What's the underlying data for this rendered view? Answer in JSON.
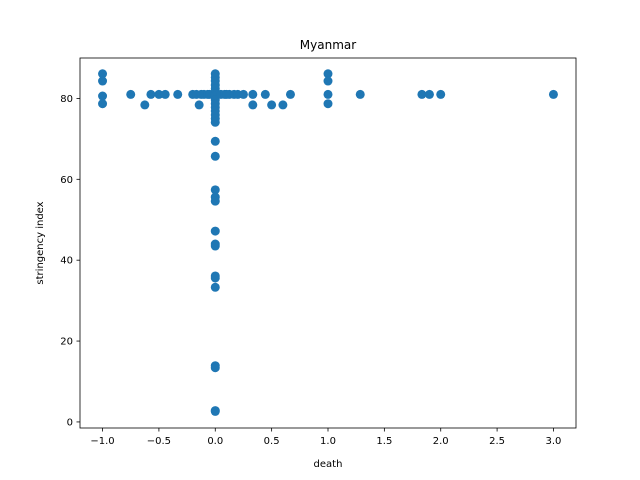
{
  "chart_data": {
    "type": "scatter",
    "title": "Myanmar",
    "xlabel": "death",
    "ylabel": "stringency index",
    "xlim": [
      -1.2,
      3.2
    ],
    "ylim": [
      -1.5,
      90
    ],
    "xticks": [
      -1.0,
      -0.5,
      0.0,
      0.5,
      1.0,
      1.5,
      2.0,
      2.5,
      3.0
    ],
    "xtick_labels": [
      "−1.0",
      "−0.5",
      "0.0",
      "0.5",
      "1.0",
      "1.5",
      "2.0",
      "2.5",
      "3.0"
    ],
    "yticks": [
      0,
      20,
      40,
      60,
      80
    ],
    "ytick_labels": [
      "0",
      "20",
      "40",
      "60",
      "80"
    ],
    "grid": false,
    "marker_color": "#1f77b4",
    "points": [
      {
        "x": -1.0,
        "y": 86.1
      },
      {
        "x": -1.0,
        "y": 84.3
      },
      {
        "x": -1.0,
        "y": 80.6
      },
      {
        "x": -1.0,
        "y": 78.7
      },
      {
        "x": -0.75,
        "y": 81.0
      },
      {
        "x": -0.625,
        "y": 78.4
      },
      {
        "x": -0.571,
        "y": 81.0
      },
      {
        "x": -0.5,
        "y": 81.0
      },
      {
        "x": -0.444,
        "y": 81.0
      },
      {
        "x": -0.333,
        "y": 81.0
      },
      {
        "x": -0.2,
        "y": 81.0
      },
      {
        "x": -0.167,
        "y": 81.0
      },
      {
        "x": -0.143,
        "y": 78.4
      },
      {
        "x": -0.125,
        "y": 81.0
      },
      {
        "x": -0.1,
        "y": 81.0
      },
      {
        "x": -0.067,
        "y": 81.0
      },
      {
        "x": -0.05,
        "y": 81.0
      },
      {
        "x": 0.0,
        "y": 86.1
      },
      {
        "x": 0.0,
        "y": 85.2
      },
      {
        "x": 0.0,
        "y": 84.3
      },
      {
        "x": 0.0,
        "y": 83.3
      },
      {
        "x": 0.0,
        "y": 82.4
      },
      {
        "x": 0.0,
        "y": 81.5
      },
      {
        "x": 0.0,
        "y": 81.0
      },
      {
        "x": 0.0,
        "y": 80.6
      },
      {
        "x": 0.0,
        "y": 79.6
      },
      {
        "x": 0.0,
        "y": 78.7
      },
      {
        "x": 0.0,
        "y": 77.8
      },
      {
        "x": 0.0,
        "y": 76.9
      },
      {
        "x": 0.0,
        "y": 75.9
      },
      {
        "x": 0.0,
        "y": 75.0
      },
      {
        "x": 0.0,
        "y": 74.1
      },
      {
        "x": 0.0,
        "y": 69.4
      },
      {
        "x": 0.0,
        "y": 65.7
      },
      {
        "x": 0.0,
        "y": 57.4
      },
      {
        "x": 0.0,
        "y": 55.6
      },
      {
        "x": 0.0,
        "y": 54.6
      },
      {
        "x": 0.0,
        "y": 47.2
      },
      {
        "x": 0.0,
        "y": 44.0
      },
      {
        "x": 0.0,
        "y": 43.5
      },
      {
        "x": 0.0,
        "y": 36.1
      },
      {
        "x": 0.0,
        "y": 35.6
      },
      {
        "x": 0.0,
        "y": 33.3
      },
      {
        "x": 0.0,
        "y": 13.9
      },
      {
        "x": 0.0,
        "y": 13.4
      },
      {
        "x": 0.0,
        "y": 2.8
      },
      {
        "x": 0.0,
        "y": 2.6
      },
      {
        "x": 0.05,
        "y": 81.0
      },
      {
        "x": 0.083,
        "y": 81.0
      },
      {
        "x": 0.1,
        "y": 81.0
      },
      {
        "x": 0.125,
        "y": 81.0
      },
      {
        "x": 0.167,
        "y": 81.0
      },
      {
        "x": 0.2,
        "y": 81.0
      },
      {
        "x": 0.25,
        "y": 81.0
      },
      {
        "x": 0.333,
        "y": 81.0
      },
      {
        "x": 0.333,
        "y": 78.4
      },
      {
        "x": 0.444,
        "y": 81.0
      },
      {
        "x": 0.5,
        "y": 78.4
      },
      {
        "x": 0.6,
        "y": 78.4
      },
      {
        "x": 0.667,
        "y": 81.0
      },
      {
        "x": 1.0,
        "y": 86.1
      },
      {
        "x": 1.0,
        "y": 84.3
      },
      {
        "x": 1.0,
        "y": 81.0
      },
      {
        "x": 1.0,
        "y": 78.7
      },
      {
        "x": 1.286,
        "y": 81.0
      },
      {
        "x": 1.833,
        "y": 81.0
      },
      {
        "x": 1.9,
        "y": 81.0
      },
      {
        "x": 2.0,
        "y": 81.0
      },
      {
        "x": 3.0,
        "y": 81.0
      }
    ]
  }
}
